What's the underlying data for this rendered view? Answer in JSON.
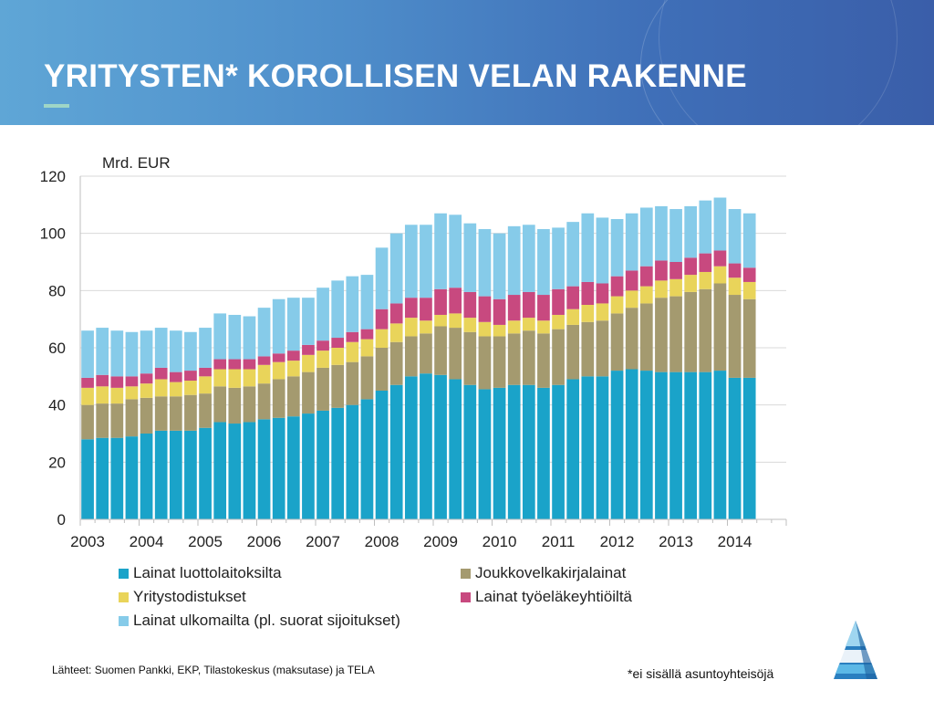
{
  "header": {
    "title": "YRITYSTEN* KOROLLISEN VELAN RAKENNE"
  },
  "colors": {
    "header_start": "#5fa6d6",
    "header_end": "#3a5ea9",
    "accent": "#9fd6c6",
    "banks": "#1aa3c9",
    "bonds": "#a49a6f",
    "commercial_paper": "#e9d45a",
    "pension": "#c8497f",
    "foreign": "#86cbe9"
  },
  "chart_data": {
    "type": "bar",
    "stacked": true,
    "unit_label": "Mrd. EUR",
    "ylim": [
      0,
      120
    ],
    "yticks": [
      0,
      20,
      40,
      60,
      80,
      100,
      120
    ],
    "grid": true,
    "legend_position": "bottom",
    "year_labels": [
      "2003",
      "2004",
      "2005",
      "2006",
      "2007",
      "2008",
      "2009",
      "2010",
      "2011",
      "2012",
      "2013",
      "2014"
    ],
    "periods_per_year": 4,
    "series": [
      {
        "name": "Lainat luottolaitoksilta",
        "color": "#1aa3c9",
        "values": [
          28,
          28.5,
          28.5,
          29,
          30,
          31,
          31,
          31,
          32,
          34,
          33.5,
          34,
          35,
          35.5,
          36,
          37,
          38,
          39,
          40,
          42,
          45,
          47,
          50,
          51,
          50.5,
          49,
          47,
          45.5,
          46,
          47,
          47,
          46,
          47,
          49,
          50,
          50,
          52,
          52.5,
          52,
          51.5,
          51.5,
          51.5,
          51.5,
          52,
          49.5,
          49.5
        ]
      },
      {
        "name": "Joukkovelkakirjalainat",
        "color": "#a49a6f",
        "values": [
          12,
          12,
          12,
          13,
          12.5,
          12,
          12,
          12.5,
          12,
          12.5,
          12.5,
          12.5,
          12.5,
          13.5,
          14,
          14.5,
          15,
          15,
          15,
          15,
          15,
          15,
          14,
          14,
          17,
          18,
          18.5,
          18.5,
          18,
          18,
          19,
          19,
          19.5,
          19,
          19,
          19.5,
          20,
          21.5,
          23.5,
          26,
          26.5,
          28,
          29,
          30.5,
          29,
          27.5
        ]
      },
      {
        "name": "Yritystodistukset",
        "color": "#e9d45a",
        "values": [
          6,
          6,
          5.5,
          4.5,
          5,
          6,
          5,
          5,
          6,
          6,
          6.5,
          6,
          6.5,
          6,
          5.5,
          6,
          6,
          6,
          7,
          6,
          6.5,
          6.5,
          6.5,
          4.5,
          4,
          5,
          5,
          5,
          4,
          4.5,
          4.5,
          4.5,
          5,
          5.5,
          6,
          6,
          6,
          6,
          6,
          6,
          6,
          6,
          6,
          6,
          6,
          6
        ]
      },
      {
        "name": "Lainat työeläkeyhtiöiltä",
        "color": "#c8497f",
        "values": [
          3.5,
          4,
          4,
          3.5,
          3.5,
          4,
          3.5,
          3.5,
          3,
          3.5,
          3.5,
          3.5,
          3,
          3,
          3.5,
          3.5,
          3.5,
          3.5,
          3.5,
          3.5,
          7,
          7,
          7,
          8,
          9,
          9,
          9,
          9,
          9,
          9,
          9,
          9,
          9,
          8,
          8,
          7,
          7,
          7,
          7,
          7,
          6,
          6,
          6.5,
          5.5,
          5,
          5
        ]
      },
      {
        "name": "Lainat ulkomailta (pl. suorat sijoitukset)",
        "color": "#86cbe9",
        "values": [
          16.5,
          16.5,
          16,
          15.5,
          15,
          14,
          14.5,
          13.5,
          14,
          16,
          15.5,
          15,
          17,
          19,
          18.5,
          16.5,
          18.5,
          20,
          19.5,
          19,
          21.5,
          24.5,
          25.5,
          25.5,
          26.5,
          25.5,
          24,
          23.5,
          23,
          24,
          23.5,
          23,
          21.5,
          22.5,
          24,
          23,
          20,
          20,
          20.5,
          19,
          18.5,
          18,
          18.5,
          18.5,
          19,
          19
        ]
      }
    ]
  },
  "sources_text": "Lähteet: Suomen Pankki, EKP, Tilastokeskus (maksutase)  ja TELA",
  "footnote_text": "*ei sisällä asuntoyhteisöjä",
  "logo_icon": "triangle-logo-icon"
}
